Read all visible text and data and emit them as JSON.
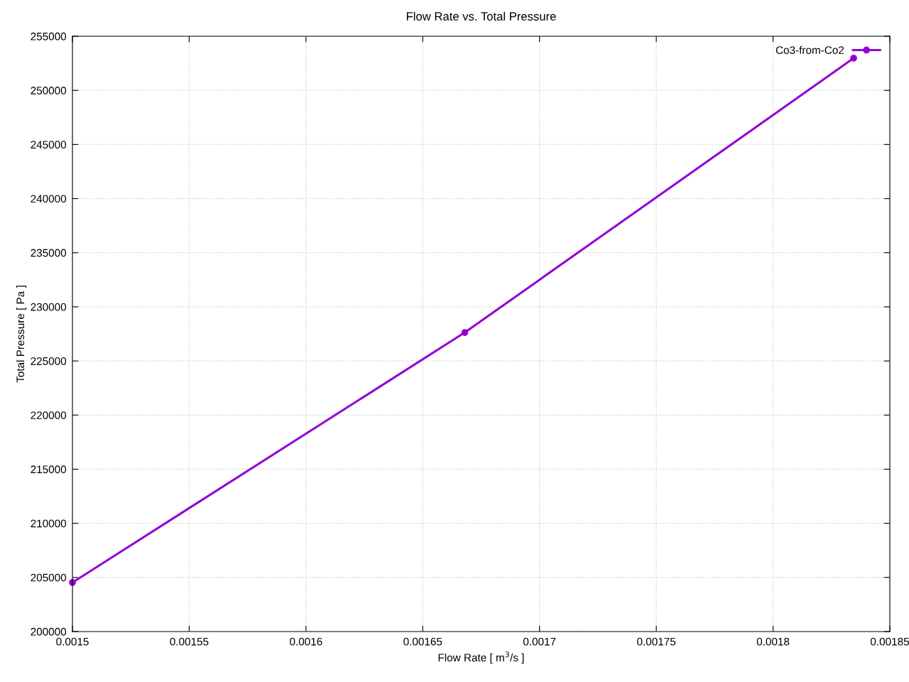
{
  "chart_data": {
    "type": "line",
    "title": "Flow Rate vs. Total Pressure",
    "xlabel": "Flow Rate [ m$^{3}$/s ]",
    "ylabel": "Total Pressure [ Pa ]",
    "x": [
      0.0015,
      0.001668,
      0.0018345
    ],
    "series": [
      {
        "name": "Co3-from-Co2",
        "color": "#9400d3",
        "values": [
          204530,
          227630,
          252970
        ]
      }
    ],
    "xlim": [
      0.0015,
      0.00185
    ],
    "xticks": [
      0.0015,
      0.00155,
      0.0016,
      0.00165,
      0.0017,
      0.00175,
      0.0018,
      0.00185
    ],
    "ylim": [
      200000,
      255000
    ],
    "yticks": [
      200000,
      205000,
      210000,
      215000,
      220000,
      225000,
      230000,
      235000,
      240000,
      245000,
      250000,
      255000
    ],
    "grid": true,
    "legend": "top right",
    "marker": "circle",
    "line_style": "solid"
  }
}
